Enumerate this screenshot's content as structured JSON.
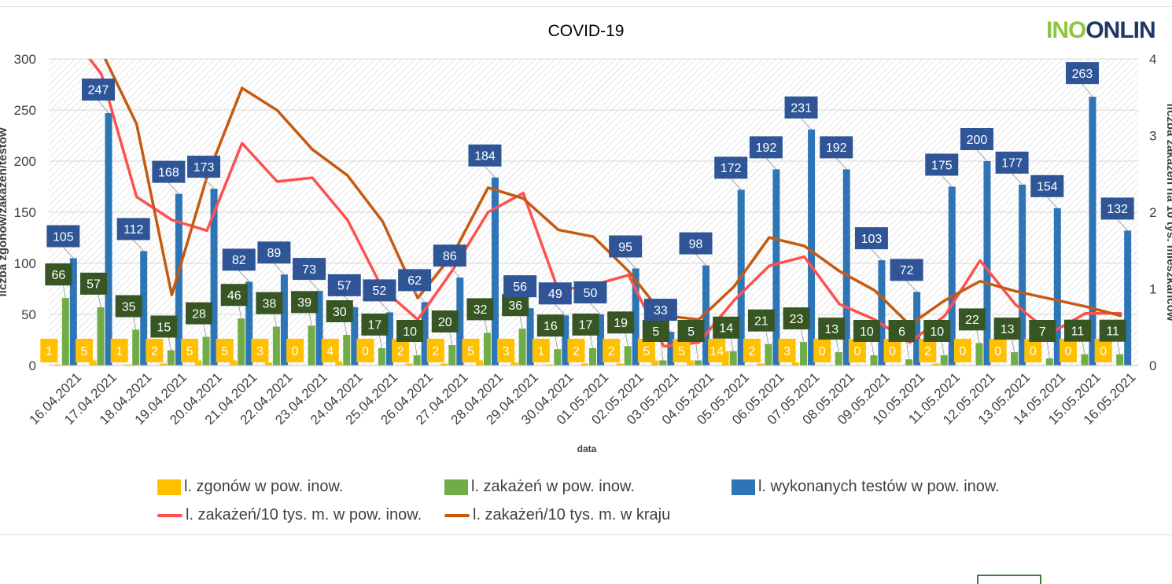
{
  "logo": {
    "part_a": "INO",
    "part_b": "ONLIN"
  },
  "chart_data": {
    "type": "bar+line",
    "title": "COVID-19",
    "xlabel": "data",
    "ylabel_left": "liczba zgonów/zakażeń/testów",
    "ylabel_right": "liczba zakażeń na 10 tys. mieszkańców",
    "ylim_left": [
      0,
      300
    ],
    "ylim_right": [
      0,
      4
    ],
    "yticks_left": [
      "0",
      "50",
      "100",
      "150",
      "200",
      "250",
      "300"
    ],
    "yticks_right": [
      "0",
      "1",
      "2",
      "3",
      "4"
    ],
    "categories": [
      "16.04.2021",
      "17.04.2021",
      "18.04.2021",
      "19.04.2021",
      "20.04.2021",
      "21.04.2021",
      "22.04.2021",
      "23.04.2021",
      "24.04.2021",
      "25.04.2021",
      "26.04.2021",
      "27.04.2021",
      "28.04.2021",
      "29.04.2021",
      "30.04.2021",
      "01.05.2021",
      "02.05.2021",
      "03.05.2021",
      "04.05.2021",
      "05.05.2021",
      "06.05.2021",
      "07.05.2021",
      "08.05.2021",
      "09.05.2021",
      "10.05.2021",
      "11.05.2021",
      "12.05.2021",
      "13.05.2021",
      "14.05.2021",
      "15.05.2021",
      "16.05.2021"
    ],
    "bar_series": [
      {
        "name": "l. zgonów w pow. inow.",
        "color": "#ffc000",
        "values": [
          1,
          5,
          1,
          2,
          5,
          5,
          3,
          0,
          4,
          0,
          2,
          2,
          5,
          3,
          1,
          2,
          2,
          5,
          5,
          14,
          2,
          3,
          0,
          0,
          0,
          2,
          0,
          0,
          0,
          0,
          0
        ]
      },
      {
        "name": "l. zakażeń w pow. inow.",
        "color": "#70ad47",
        "values": [
          66,
          57,
          35,
          15,
          28,
          46,
          38,
          39,
          30,
          17,
          10,
          20,
          32,
          36,
          16,
          17,
          19,
          5,
          5,
          14,
          21,
          23,
          13,
          10,
          6,
          10,
          22,
          13,
          7,
          11,
          11
        ]
      },
      {
        "name": "l. wykonanych testów w pow. inow.",
        "color": "#2e75b6",
        "values": [
          105,
          247,
          112,
          168,
          173,
          82,
          89,
          73,
          57,
          52,
          62,
          86,
          184,
          56,
          49,
          50,
          95,
          33,
          98,
          172,
          192,
          231,
          192,
          103,
          72,
          175,
          200,
          177,
          154,
          263,
          132
        ]
      }
    ],
    "line_series": [
      {
        "name": "l. zakażeń/10 tys. m. w pow. inow.",
        "color": "#ff5050",
        "values": [
          4.4,
          3.8,
          2.2,
          1.9,
          1.76,
          2.9,
          2.4,
          2.45,
          1.9,
          1.0,
          0.6,
          1.25,
          2.0,
          2.25,
          0.98,
          1.05,
          1.18,
          0.25,
          0.3,
          0.85,
          1.3,
          1.42,
          0.8,
          0.6,
          0.3,
          0.65,
          1.37,
          0.8,
          0.42,
          0.68,
          0.68
        ]
      },
      {
        "name": "l. zakażeń/10 tys. m. w kraju",
        "color": "#c55a11",
        "values": [
          4.4,
          4.1,
          3.15,
          0.92,
          2.46,
          3.62,
          3.33,
          2.82,
          2.48,
          1.88,
          0.88,
          1.45,
          2.32,
          2.18,
          1.77,
          1.68,
          1.23,
          0.65,
          0.6,
          1.03,
          1.67,
          1.56,
          1.23,
          0.98,
          0.53,
          0.85,
          1.1,
          0.97,
          0.87,
          0.77,
          0.65
        ]
      }
    ],
    "grid": true,
    "legend_position": "bottom"
  }
}
